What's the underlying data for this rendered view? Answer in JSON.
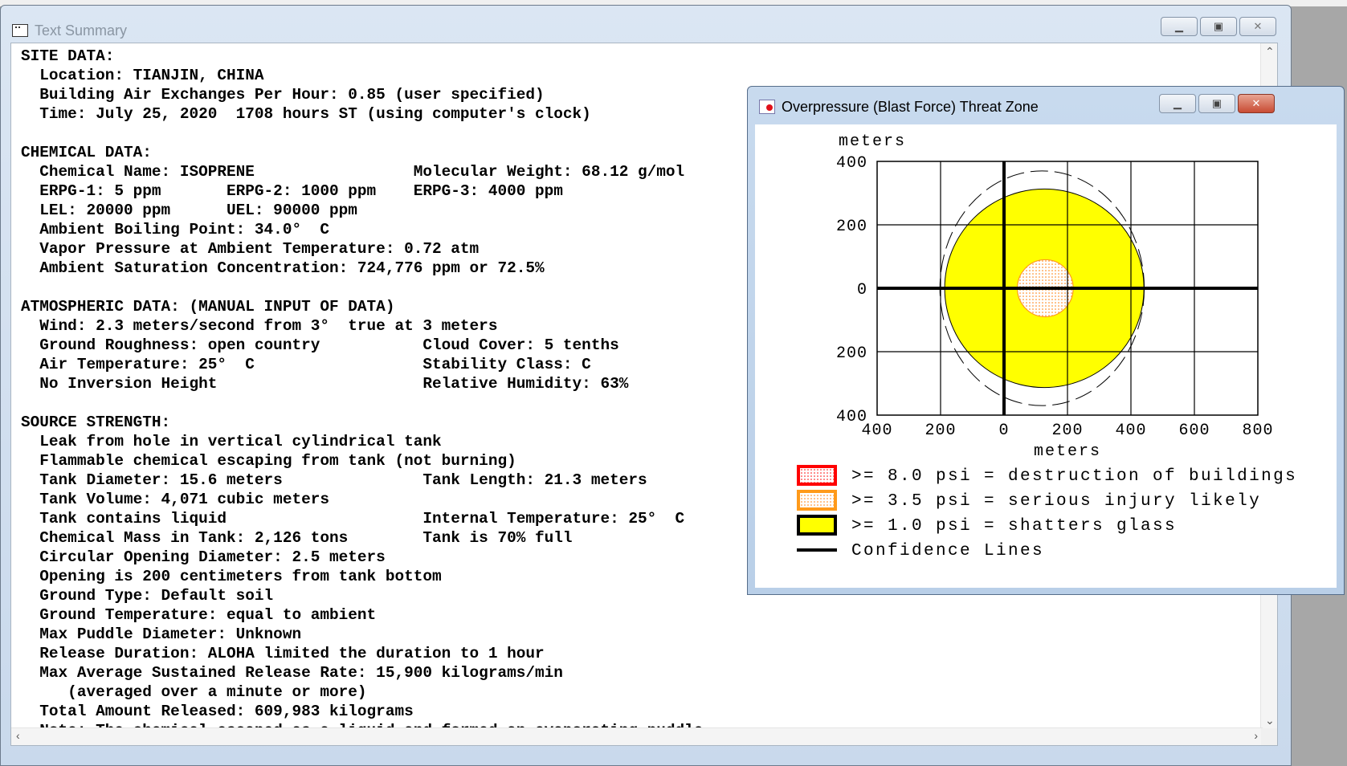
{
  "main_window": {
    "title": "Text Summary",
    "lines": [
      "SITE DATA:",
      "  Location: TIANJIN, CHINA",
      "  Building Air Exchanges Per Hour: 0.85 (user specified)",
      "  Time: July 25, 2020  1708 hours ST (using computer's clock)",
      "",
      "CHEMICAL DATA:",
      "  Chemical Name: ISOPRENE                 Molecular Weight: 68.12 g/mol",
      "  ERPG-1: 5 ppm       ERPG-2: 1000 ppm    ERPG-3: 4000 ppm",
      "  LEL: 20000 ppm      UEL: 90000 ppm",
      "  Ambient Boiling Point: 34.0°  C",
      "  Vapor Pressure at Ambient Temperature: 0.72 atm",
      "  Ambient Saturation Concentration: 724,776 ppm or 72.5%",
      "",
      "ATMOSPHERIC DATA: (MANUAL INPUT OF DATA)",
      "  Wind: 2.3 meters/second from 3°  true at 3 meters",
      "  Ground Roughness: open country           Cloud Cover: 5 tenths",
      "  Air Temperature: 25°  C                  Stability Class: C",
      "  No Inversion Height                      Relative Humidity: 63%",
      "",
      "SOURCE STRENGTH:",
      "  Leak from hole in vertical cylindrical tank",
      "  Flammable chemical escaping from tank (not burning)",
      "  Tank Diameter: 15.6 meters               Tank Length: 21.3 meters",
      "  Tank Volume: 4,071 cubic meters",
      "  Tank contains liquid                     Internal Temperature: 25°  C",
      "  Chemical Mass in Tank: 2,126 tons        Tank is 70% full",
      "  Circular Opening Diameter: 2.5 meters",
      "  Opening is 200 centimeters from tank bottom",
      "  Ground Type: Default soil",
      "  Ground Temperature: equal to ambient",
      "  Max Puddle Diameter: Unknown",
      "  Release Duration: ALOHA limited the duration to 1 hour",
      "  Max Average Sustained Release Rate: 15,900 kilograms/min",
      "     (averaged over a minute or more)",
      "  Total Amount Released: 609,983 kilograms",
      "  Note: The chemical escaped as a liquid and formed an evaporating puddle."
    ]
  },
  "chart_window": {
    "title": "Overpressure (Blast Force) Threat Zone"
  },
  "chart_data": {
    "type": "threat-zone",
    "xlabel": "meters",
    "ylabel": "meters",
    "xlim": [
      -400,
      800
    ],
    "ylim": [
      -400,
      400
    ],
    "xticks": [
      -400,
      -200,
      0,
      200,
      400,
      600,
      800
    ],
    "xtick_labels": [
      "400",
      "200",
      "0",
      "200",
      "400",
      "600",
      "800"
    ],
    "yticks": [
      400,
      200,
      0,
      -200,
      -400
    ],
    "ytick_labels": [
      "400",
      "200",
      "0",
      "200",
      "400"
    ],
    "grid": true,
    "zones": [
      {
        "label": ">= 8.0 psi = destruction of buildings",
        "color": "#ff0000",
        "fill": "#ffffff",
        "center": [
          130,
          0
        ],
        "radius_x": 0,
        "radius_y": 0
      },
      {
        "label": ">= 3.5 psi = serious injury likely",
        "color": "#ff9a1a",
        "fill": "#ffd9b0",
        "center": [
          130,
          0
        ],
        "radius_x": 88,
        "radius_y": 90
      },
      {
        "label": ">= 1.0 psi = shatters glass",
        "color": "#000000",
        "fill": "#ffff00",
        "center": [
          127,
          0
        ],
        "radius_x": 314,
        "radius_y": 313
      }
    ],
    "confidence": {
      "label": "Confidence Lines",
      "center": [
        120,
        0
      ],
      "radius_x": 322,
      "radius_y": 370
    }
  }
}
